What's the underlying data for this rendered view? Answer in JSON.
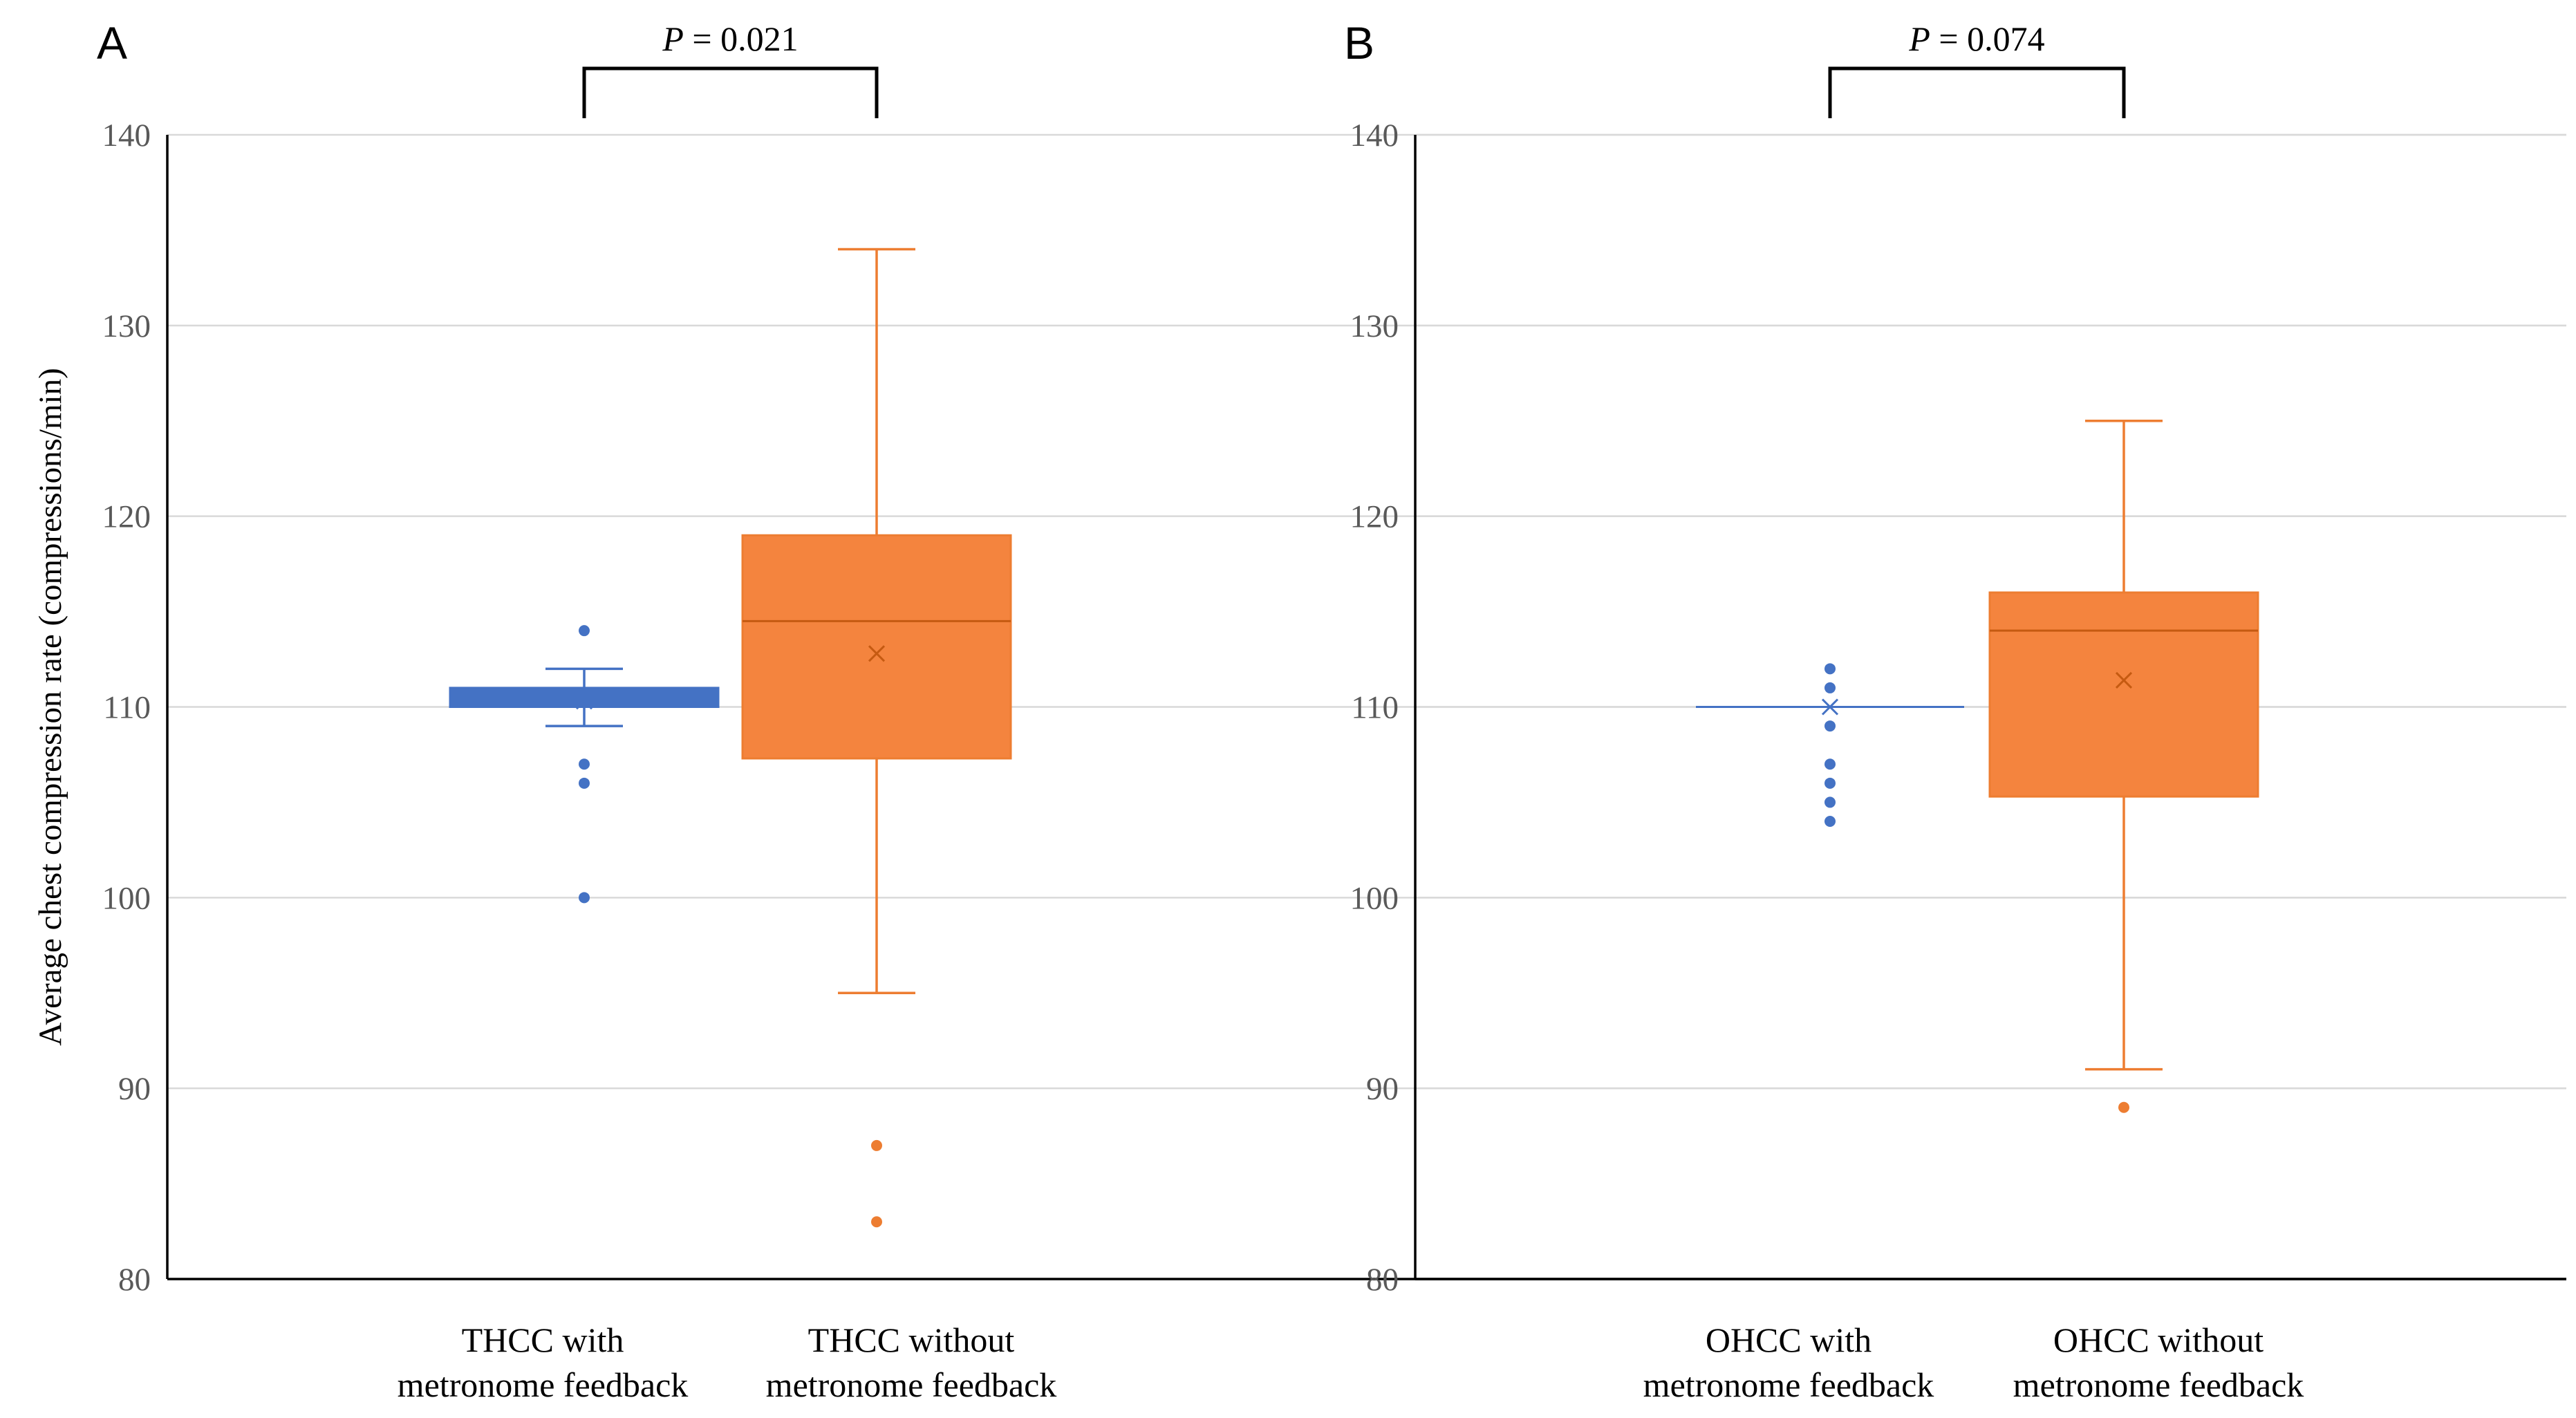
{
  "chart_data": [
    {
      "panel": "A",
      "type": "box",
      "ylabel": "Average chest compression rate (compressions/min)",
      "ylim": [
        80,
        140
      ],
      "yticks": [
        80,
        90,
        100,
        110,
        120,
        130,
        140
      ],
      "grid": true,
      "significance": {
        "prefix": "P",
        "text": " = 0.021",
        "between": [
          0,
          1
        ]
      },
      "series": [
        {
          "name": "THCC with metronome feedback",
          "label_lines": [
            "THCC with",
            "metronome feedback"
          ],
          "color": "#4472C4",
          "fill": "#4472C4",
          "q1": 110,
          "median": 110,
          "q3": 111,
          "whisker_low": 109,
          "whisker_high": 112,
          "mean": 110.3,
          "outliers": [
            114,
            107,
            106,
            100
          ]
        },
        {
          "name": "THCC without metronome feedback",
          "label_lines": [
            "THCC without",
            "metronome feedback"
          ],
          "color": "#ED7D31",
          "fill": "#F4843E",
          "q1": 107.3,
          "median": 114.5,
          "q3": 119,
          "whisker_low": 95,
          "whisker_high": 134,
          "mean": 112.8,
          "outliers": [
            87,
            83
          ]
        }
      ]
    },
    {
      "panel": "B",
      "type": "box",
      "ylabel": "",
      "ylim": [
        80,
        140
      ],
      "yticks": [
        80,
        90,
        100,
        110,
        120,
        130,
        140
      ],
      "grid": true,
      "significance": {
        "prefix": "P",
        "text": " = 0.074",
        "between": [
          0,
          1
        ]
      },
      "series": [
        {
          "name": "OHCC with metronome feedback",
          "label_lines": [
            "OHCC with",
            "metronome feedback"
          ],
          "color": "#4472C4",
          "fill": "#4472C4",
          "q1": 110,
          "median": 110,
          "q3": 110,
          "whisker_low": 110,
          "whisker_high": 110,
          "mean": 110,
          "outliers": [
            112,
            111,
            109,
            107,
            106,
            105,
            104
          ]
        },
        {
          "name": "OHCC without metronome feedback",
          "label_lines": [
            "OHCC without",
            "metronome feedback"
          ],
          "color": "#ED7D31",
          "fill": "#F4843E",
          "q1": 105.3,
          "median": 114,
          "q3": 116,
          "whisker_low": 91,
          "whisker_high": 125,
          "mean": 111.4,
          "outliers": [
            89
          ]
        }
      ]
    }
  ]
}
